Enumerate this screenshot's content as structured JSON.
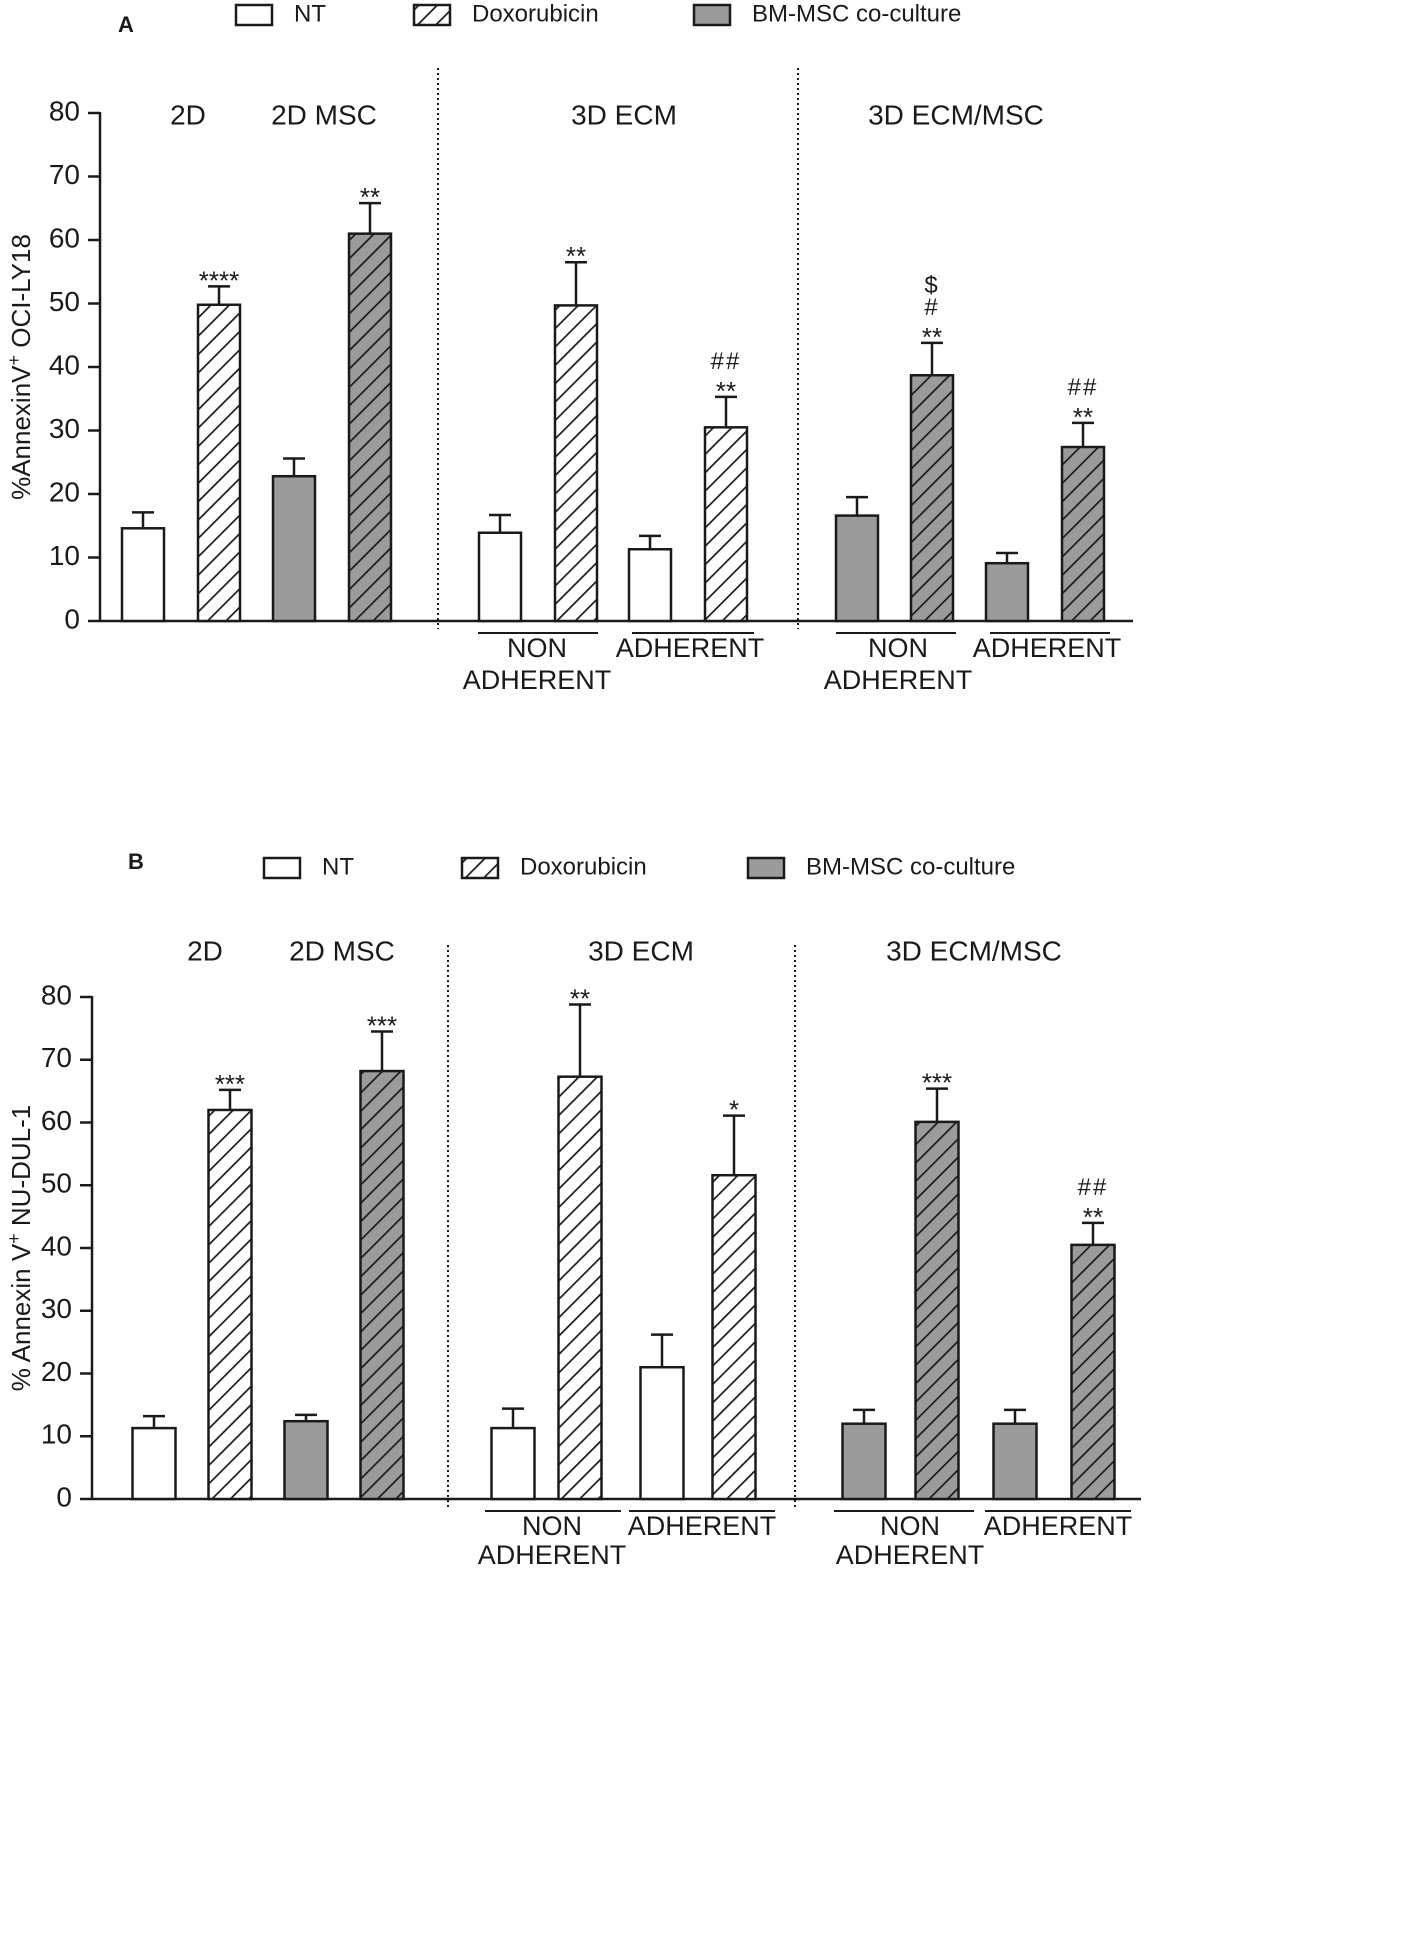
{
  "chart_data": [
    {
      "panel": "A",
      "type": "bar",
      "ylabel_main": "%AnnexinV",
      "ylabel_sup": "+",
      "ylabel_rest": " OCI-LY18",
      "ylim": [
        0,
        80
      ],
      "yticks": [
        "0",
        "10",
        "20",
        "30",
        "40",
        "50",
        "60",
        "70",
        "80"
      ],
      "legend": [
        {
          "label": "NT",
          "style": "open"
        },
        {
          "label": "Doxorubicin",
          "style": "hatched"
        },
        {
          "label": "BM-MSC co-culture",
          "style": "gray"
        }
      ],
      "group_headers": [
        "2D",
        "2D MSC",
        "3D ECM",
        "3D ECM/MSC"
      ],
      "subgroups": [
        {
          "lines": [
            "NON",
            "ADHERENT"
          ]
        },
        {
          "lines": [
            "ADHERENT"
          ]
        },
        {
          "lines": [
            "NON",
            "ADHERENT"
          ]
        },
        {
          "lines": [
            "ADHERENT"
          ]
        }
      ],
      "bars": [
        {
          "value": 14.6,
          "error": 2.5,
          "style": "open",
          "labels": []
        },
        {
          "value": 49.8,
          "error": 2.9,
          "style": "hatched",
          "labels": [
            "****"
          ]
        },
        {
          "value": 22.8,
          "error": 2.8,
          "style": "gray",
          "labels": []
        },
        {
          "value": 61.0,
          "error": 4.8,
          "style": "grayhatched",
          "labels": [
            "**"
          ]
        },
        {
          "value": 13.9,
          "error": 2.8,
          "style": "open",
          "labels": []
        },
        {
          "value": 49.7,
          "error": 6.8,
          "style": "hatched",
          "labels": [
            "**"
          ]
        },
        {
          "value": 11.3,
          "error": 2.1,
          "style": "open",
          "labels": []
        },
        {
          "value": 30.5,
          "error": 4.8,
          "style": "hatched",
          "labels": [
            "**",
            "##"
          ]
        },
        {
          "value": 16.6,
          "error": 2.9,
          "style": "gray",
          "labels": []
        },
        {
          "value": 38.7,
          "error": 5.1,
          "style": "grayhatched",
          "labels": [
            "**",
            "#",
            "$"
          ]
        },
        {
          "value": 9.1,
          "error": 1.6,
          "style": "gray",
          "labels": []
        },
        {
          "value": 27.4,
          "error": 3.8,
          "style": "grayhatched",
          "labels": [
            "**",
            "##"
          ]
        }
      ]
    },
    {
      "panel": "B",
      "type": "bar",
      "ylabel_main": "% Annexin V",
      "ylabel_sup": "+",
      "ylabel_rest": " NU-DUL-1",
      "ylim": [
        0,
        80
      ],
      "yticks": [
        "0",
        "10",
        "20",
        "30",
        "40",
        "50",
        "60",
        "70",
        "80"
      ],
      "legend": [
        {
          "label": "NT",
          "style": "open"
        },
        {
          "label": "Doxorubicin",
          "style": "hatched"
        },
        {
          "label": "BM-MSC co-culture",
          "style": "gray"
        }
      ],
      "group_headers": [
        "2D",
        "2D MSC",
        "3D ECM",
        "3D ECM/MSC"
      ],
      "subgroups": [
        {
          "lines": [
            "NON",
            "ADHERENT"
          ]
        },
        {
          "lines": [
            "ADHERENT"
          ]
        },
        {
          "lines": [
            "NON",
            "ADHERENT"
          ]
        },
        {
          "lines": [
            "ADHERENT"
          ]
        }
      ],
      "bars": [
        {
          "value": 11.3,
          "error": 1.9,
          "style": "open",
          "labels": []
        },
        {
          "value": 62.0,
          "error": 3.2,
          "style": "hatched",
          "labels": [
            "***"
          ]
        },
        {
          "value": 12.4,
          "error": 1.0,
          "style": "gray",
          "labels": []
        },
        {
          "value": 68.2,
          "error": 6.3,
          "style": "grayhatched",
          "labels": [
            "***"
          ]
        },
        {
          "value": 11.3,
          "error": 3.1,
          "style": "open",
          "labels": []
        },
        {
          "value": 67.3,
          "error": 11.5,
          "style": "hatched",
          "labels": [
            "**"
          ]
        },
        {
          "value": 21.0,
          "error": 5.2,
          "style": "open",
          "labels": []
        },
        {
          "value": 51.6,
          "error": 9.5,
          "style": "hatched",
          "labels": [
            "*"
          ]
        },
        {
          "value": 12.0,
          "error": 2.2,
          "style": "gray",
          "labels": []
        },
        {
          "value": 60.1,
          "error": 5.3,
          "style": "grayhatched",
          "labels": [
            "***"
          ]
        },
        {
          "value": 12.0,
          "error": 2.2,
          "style": "gray",
          "labels": []
        },
        {
          "value": 40.5,
          "error": 3.5,
          "style": "grayhatched",
          "labels": [
            "**",
            "##"
          ]
        }
      ]
    }
  ]
}
